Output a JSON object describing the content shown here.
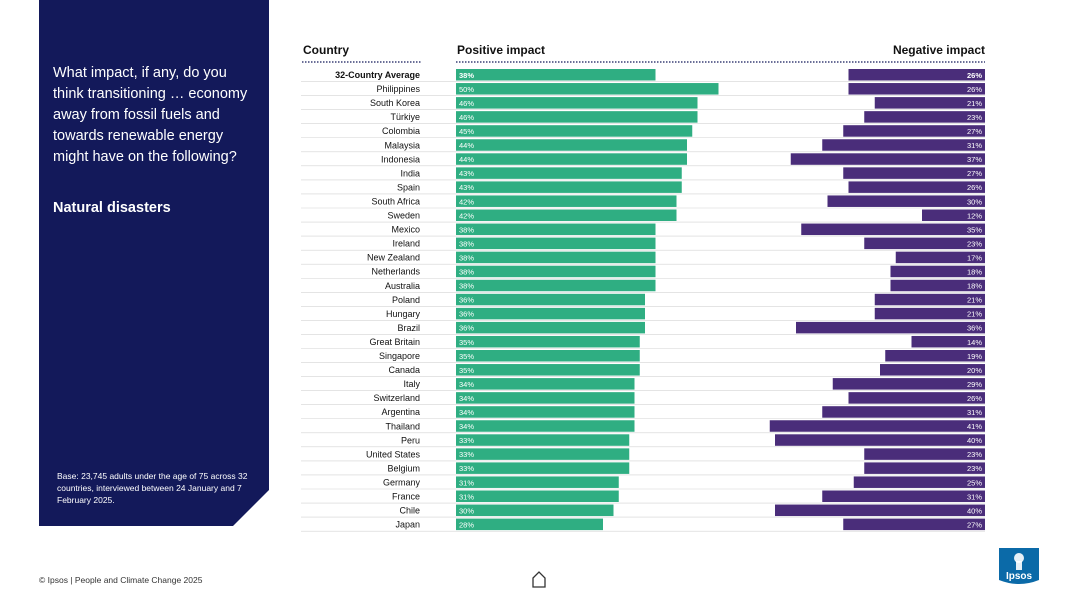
{
  "sidebar": {
    "question": "What impact, if any, do you think transitioning … economy away from fossil fuels and towards renewable energy might have on the following?",
    "topic": "Natural disasters",
    "base_note": "Base: 23,745 adults under the age of 75 across 32 countries, interviewed between 24 January and 7 February 2025."
  },
  "footer": {
    "text": "© Ipsos | People and Climate Change 2025"
  },
  "logo": {
    "text": "Ipsos"
  },
  "colors": {
    "navy": "#13195a",
    "positive": "#2fae82",
    "negative": "#4a2d7a",
    "logo": "#0b6aa8"
  },
  "icons": {
    "home": "home-icon"
  },
  "chart_data": {
    "type": "bar",
    "orientation": "horizontal-diverging",
    "headers": {
      "category": "Country",
      "positive": "Positive impact",
      "negative": "Negative impact"
    },
    "value_suffix": "%",
    "xlim": [
      0,
      60
    ],
    "categories": [
      "32-Country Average",
      "Philippines",
      "South Korea",
      "Türkiye",
      "Colombia",
      "Malaysia",
      "Indonesia",
      "India",
      "Spain",
      "South Africa",
      "Sweden",
      "Mexico",
      "Ireland",
      "New Zealand",
      "Netherlands",
      "Australia",
      "Poland",
      "Hungary",
      "Brazil",
      "Great Britain",
      "Singapore",
      "Canada",
      "Italy",
      "Switzerland",
      "Argentina",
      "Thailand",
      "Peru",
      "United States",
      "Belgium",
      "Germany",
      "France",
      "Chile",
      "Japan"
    ],
    "series": [
      {
        "name": "Positive impact",
        "values": [
          38,
          50,
          46,
          46,
          45,
          44,
          44,
          43,
          43,
          42,
          42,
          38,
          38,
          38,
          38,
          38,
          36,
          36,
          36,
          35,
          35,
          35,
          34,
          34,
          34,
          34,
          33,
          33,
          33,
          31,
          31,
          30,
          28
        ]
      },
      {
        "name": "Negative impact",
        "values": [
          26,
          26,
          21,
          23,
          27,
          31,
          37,
          27,
          26,
          30,
          12,
          35,
          23,
          17,
          18,
          18,
          21,
          21,
          36,
          14,
          19,
          20,
          29,
          26,
          31,
          41,
          40,
          23,
          23,
          25,
          31,
          40,
          27
        ]
      }
    ]
  }
}
